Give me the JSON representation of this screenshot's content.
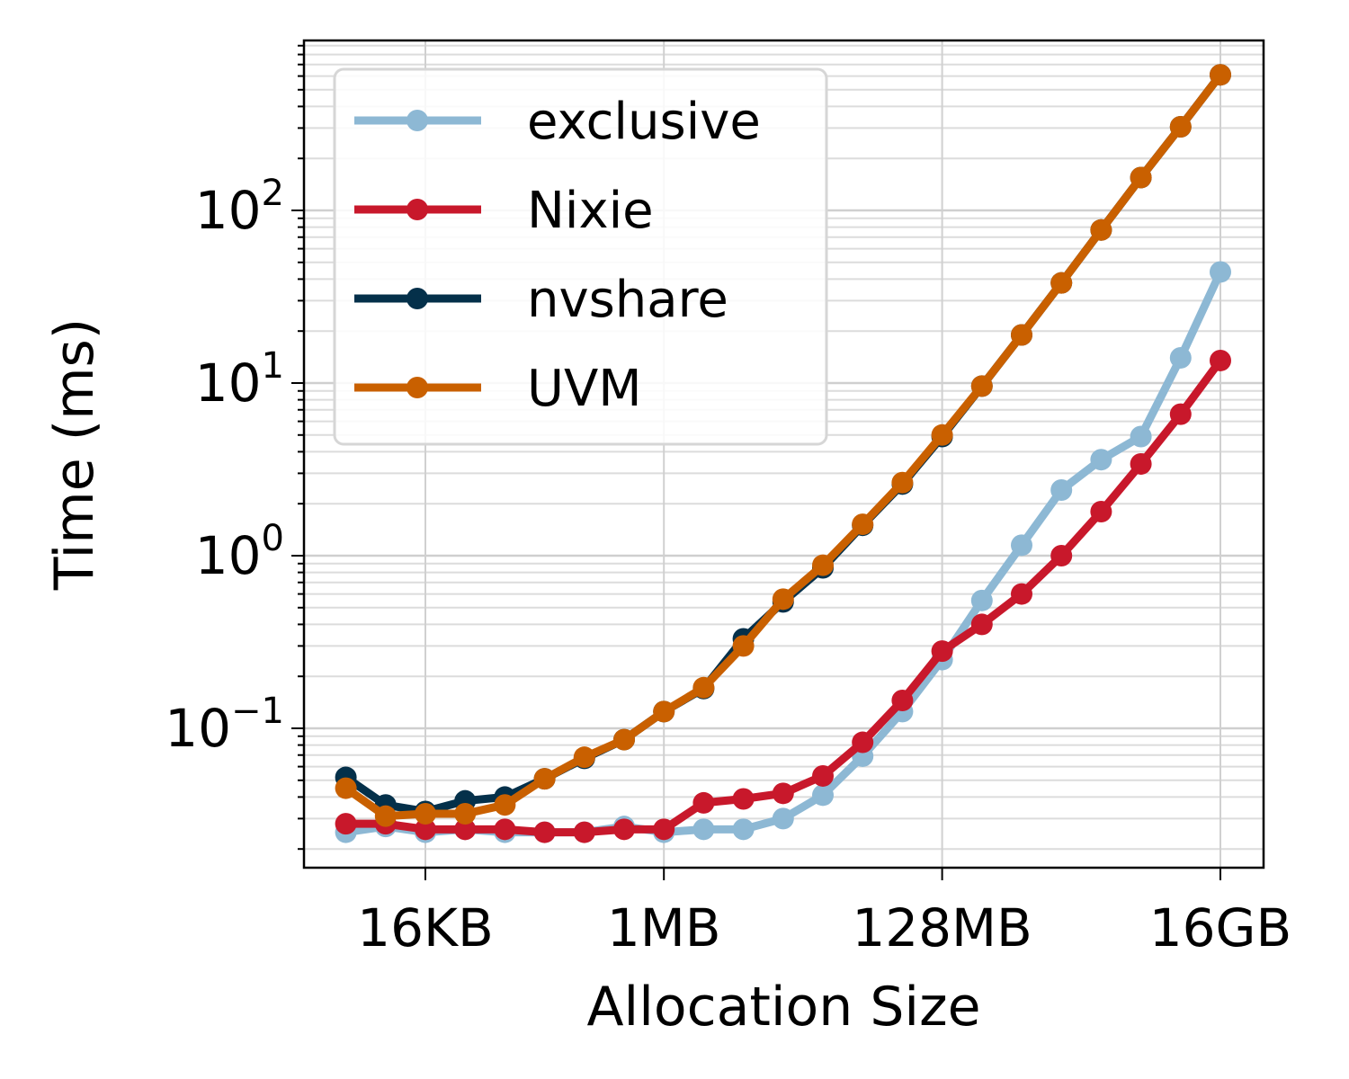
{
  "chart_data": {
    "type": "line",
    "title": "",
    "xlabel": "Allocation Size",
    "ylabel": "Time (ms)",
    "x_scale": "log2",
    "y_scale": "log10",
    "x": [
      "4KB",
      "8KB",
      "16KB",
      "32KB",
      "64KB",
      "128KB",
      "256KB",
      "512KB",
      "1MB",
      "2MB",
      "4MB",
      "8MB",
      "16MB",
      "32MB",
      "64MB",
      "128MB",
      "256MB",
      "512MB",
      "1GB",
      "2GB",
      "4GB",
      "8GB",
      "16GB"
    ],
    "x_ticks": [
      "16KB",
      "1MB",
      "128MB",
      "16GB"
    ],
    "y_ticks": [
      "10^-1",
      "10^0",
      "10^1",
      "10^2"
    ],
    "ylim": [
      0.015,
      900
    ],
    "grid": true,
    "legend_position": "top-left",
    "series": [
      {
        "name": "exclusive",
        "color": "#8db8d4",
        "values": [
          0.025,
          0.027,
          0.025,
          0.026,
          0.025,
          0.025,
          0.025,
          0.027,
          0.025,
          0.026,
          0.026,
          0.03,
          0.041,
          0.069,
          0.125,
          0.25,
          0.55,
          1.15,
          2.4,
          3.6,
          4.9,
          14,
          44
        ]
      },
      {
        "name": "Nixie",
        "color": "#c8182b",
        "values": [
          0.028,
          0.028,
          0.026,
          0.026,
          0.026,
          0.025,
          0.025,
          0.026,
          0.026,
          0.037,
          0.039,
          0.042,
          0.053,
          0.083,
          0.145,
          0.28,
          0.4,
          0.6,
          1.0,
          1.8,
          3.4,
          6.6,
          13.5
        ]
      },
      {
        "name": "nvshare",
        "color": "#04304a",
        "values": [
          0.052,
          0.036,
          0.033,
          0.038,
          0.04,
          0.051,
          0.067,
          0.086,
          0.125,
          0.17,
          0.33,
          0.54,
          0.85,
          1.5,
          2.6,
          4.9,
          9.6,
          19,
          38,
          77,
          155,
          305,
          610
        ]
      },
      {
        "name": "UVM",
        "color": "#c96000",
        "values": [
          0.045,
          0.031,
          0.032,
          0.032,
          0.036,
          0.051,
          0.068,
          0.086,
          0.125,
          0.172,
          0.3,
          0.56,
          0.88,
          1.52,
          2.65,
          5.0,
          9.6,
          19,
          38,
          77,
          155,
          305,
          610
        ]
      }
    ]
  }
}
